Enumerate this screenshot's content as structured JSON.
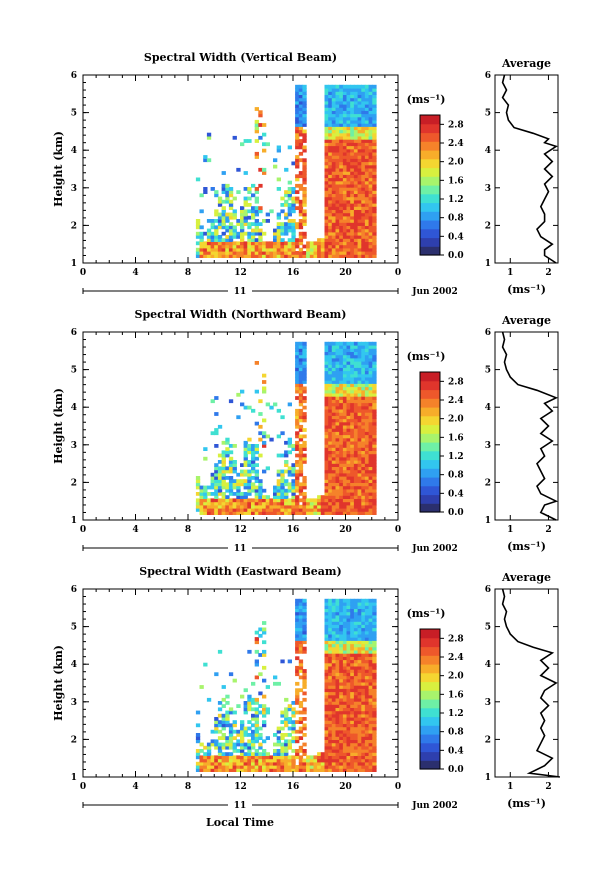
{
  "figure": {
    "x_axis_title": "Local Time",
    "date_label": "Jun 2002",
    "day_label": "11",
    "colorbar_unit": "(ms⁻¹)",
    "average_xlabel": "(ms⁻¹)",
    "colormap": [
      "#2b2f6e",
      "#2e3fae",
      "#2f56d6",
      "#2f79ea",
      "#2fa0f2",
      "#32c6ef",
      "#3fe0d2",
      "#6ef0a6",
      "#a8f46c",
      "#d8f03f",
      "#f4d631",
      "#f7ad2a",
      "#f5822a",
      "#ee582b",
      "#e0352c",
      "#c81e26"
    ]
  },
  "chart_data": [
    {
      "type": "heatmap",
      "title": "Spectral Width (Vertical Beam)",
      "ylabel": "Height (km)",
      "xlim": [
        0,
        24
      ],
      "ylim": [
        1,
        6
      ],
      "xticks": [
        "0",
        "4",
        "8",
        "12",
        "16",
        "20",
        "0"
      ],
      "yticks": [
        "1",
        "2",
        "3",
        "4",
        "5",
        "6"
      ],
      "colorbar": {
        "range": [
          0,
          3.0
        ],
        "ticks": [
          "0.0",
          "0.4",
          "0.8",
          "1.2",
          "1.6",
          "2.0",
          "2.4",
          "2.8"
        ]
      },
      "average": {
        "title": "Average",
        "xlim": [
          0.6,
          2.25
        ],
        "xticks": [
          "1",
          "2"
        ],
        "yticks": [
          "1",
          "2",
          "3",
          "4",
          "5",
          "6"
        ],
        "profile": [
          [
            2.2,
            1.0
          ],
          [
            1.9,
            1.2
          ],
          [
            1.9,
            1.35
          ],
          [
            2.1,
            1.5
          ],
          [
            1.8,
            1.7
          ],
          [
            1.7,
            1.9
          ],
          [
            1.9,
            2.1
          ],
          [
            1.9,
            2.3
          ],
          [
            1.8,
            2.5
          ],
          [
            1.9,
            2.7
          ],
          [
            2.0,
            2.9
          ],
          [
            1.9,
            3.1
          ],
          [
            2.1,
            3.3
          ],
          [
            1.9,
            3.5
          ],
          [
            2.1,
            3.7
          ],
          [
            1.9,
            3.9
          ],
          [
            2.2,
            4.1
          ],
          [
            1.9,
            4.2
          ],
          [
            2.0,
            4.3
          ],
          [
            1.6,
            4.45
          ],
          [
            1.1,
            4.6
          ],
          [
            0.95,
            4.8
          ],
          [
            0.9,
            5.0
          ],
          [
            0.95,
            5.2
          ],
          [
            0.8,
            5.4
          ],
          [
            0.9,
            5.6
          ],
          [
            0.8,
            5.8
          ],
          [
            0.85,
            6.0
          ]
        ]
      }
    },
    {
      "type": "heatmap",
      "title": "Spectral Width (Northward Beam)",
      "ylabel": "Height (km)",
      "xlim": [
        0,
        24
      ],
      "ylim": [
        1,
        6
      ],
      "xticks": [
        "0",
        "4",
        "8",
        "12",
        "16",
        "20",
        "0"
      ],
      "yticks": [
        "1",
        "2",
        "3",
        "4",
        "5",
        "6"
      ],
      "colorbar": {
        "range": [
          0,
          3.0
        ],
        "ticks": [
          "0.0",
          "0.4",
          "0.8",
          "1.2",
          "1.6",
          "2.0",
          "2.4",
          "2.8"
        ]
      },
      "average": {
        "title": "Average",
        "xlim": [
          0.6,
          2.25
        ],
        "xticks": [
          "1",
          "2"
        ],
        "yticks": [
          "1",
          "2",
          "3",
          "4",
          "5",
          "6"
        ],
        "profile": [
          [
            2.2,
            1.0
          ],
          [
            1.8,
            1.2
          ],
          [
            1.9,
            1.4
          ],
          [
            2.2,
            1.5
          ],
          [
            1.8,
            1.7
          ],
          [
            1.7,
            1.9
          ],
          [
            1.9,
            2.1
          ],
          [
            1.8,
            2.3
          ],
          [
            1.7,
            2.5
          ],
          [
            1.9,
            2.7
          ],
          [
            1.8,
            2.9
          ],
          [
            2.1,
            3.1
          ],
          [
            1.8,
            3.3
          ],
          [
            2.0,
            3.5
          ],
          [
            1.8,
            3.7
          ],
          [
            2.1,
            3.9
          ],
          [
            1.9,
            4.1
          ],
          [
            2.2,
            4.25
          ],
          [
            1.7,
            4.45
          ],
          [
            1.2,
            4.6
          ],
          [
            1.0,
            4.8
          ],
          [
            0.9,
            5.0
          ],
          [
            0.85,
            5.2
          ],
          [
            0.9,
            5.4
          ],
          [
            0.8,
            5.6
          ],
          [
            0.85,
            5.8
          ],
          [
            0.8,
            6.0
          ]
        ]
      }
    },
    {
      "type": "heatmap",
      "title": "Spectral Width (Eastward Beam)",
      "ylabel": "Height (km)",
      "xlim": [
        0,
        24
      ],
      "ylim": [
        1,
        6
      ],
      "xticks": [
        "0",
        "4",
        "8",
        "12",
        "16",
        "20",
        "0"
      ],
      "yticks": [
        "1",
        "2",
        "3",
        "4",
        "5",
        "6"
      ],
      "colorbar": {
        "range": [
          0,
          3.0
        ],
        "ticks": [
          "0.0",
          "0.4",
          "0.8",
          "1.2",
          "1.6",
          "2.0",
          "2.4",
          "2.8"
        ]
      },
      "average": {
        "title": "Average",
        "xlim": [
          0.6,
          2.25
        ],
        "xticks": [
          "1",
          "2"
        ],
        "yticks": [
          "1",
          "2",
          "3",
          "4",
          "5",
          "6"
        ],
        "profile": [
          [
            2.3,
            1.0
          ],
          [
            1.5,
            1.1
          ],
          [
            1.9,
            1.3
          ],
          [
            2.1,
            1.5
          ],
          [
            1.7,
            1.7
          ],
          [
            1.8,
            1.9
          ],
          [
            1.9,
            2.1
          ],
          [
            1.8,
            2.3
          ],
          [
            1.9,
            2.5
          ],
          [
            1.8,
            2.7
          ],
          [
            2.0,
            2.9
          ],
          [
            1.8,
            3.1
          ],
          [
            1.9,
            3.3
          ],
          [
            2.2,
            3.5
          ],
          [
            1.8,
            3.7
          ],
          [
            2.0,
            3.9
          ],
          [
            1.8,
            4.1
          ],
          [
            2.1,
            4.3
          ],
          [
            1.6,
            4.45
          ],
          [
            1.2,
            4.6
          ],
          [
            1.0,
            4.8
          ],
          [
            0.9,
            5.0
          ],
          [
            0.85,
            5.2
          ],
          [
            0.9,
            5.4
          ],
          [
            0.8,
            5.6
          ],
          [
            0.85,
            5.8
          ],
          [
            0.8,
            6.0
          ]
        ]
      }
    }
  ]
}
